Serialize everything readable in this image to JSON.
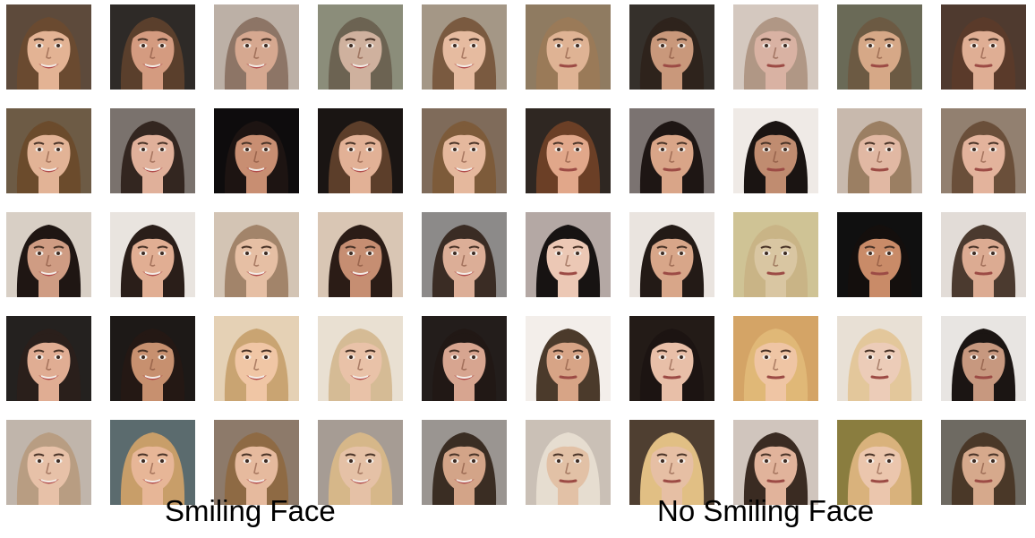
{
  "captions": {
    "left": "Smiling Face",
    "right": "No Smiling Face"
  },
  "grid": {
    "rows": 5,
    "cols_per_group": 5
  },
  "groups": [
    {
      "id": "smiling",
      "faces": [
        {
          "bg": "#5d4a3b",
          "skin": "#e3b394",
          "hair": "#6a4a30",
          "smile": true
        },
        {
          "bg": "#2e2a27",
          "skin": "#d49b80",
          "hair": "#5a3f2c",
          "smile": true
        },
        {
          "bg": "#bcb0a6",
          "skin": "#d6a890",
          "hair": "#8d7566",
          "smile": true
        },
        {
          "bg": "#8b8d7a",
          "skin": "#cfb19e",
          "hair": "#6c6352",
          "smile": true
        },
        {
          "bg": "#a49786",
          "skin": "#e6bba0",
          "hair": "#7a5a40",
          "smile": true
        },
        {
          "bg": "#6d5b45",
          "skin": "#e2b396",
          "hair": "#6b4b2c",
          "smile": true
        },
        {
          "bg": "#7a726d",
          "skin": "#e0b09a",
          "hair": "#332620",
          "smile": true
        },
        {
          "bg": "#0e0c0d",
          "skin": "#c88e72",
          "hair": "#1d1412",
          "smile": true
        },
        {
          "bg": "#1a1513",
          "skin": "#e2b196",
          "hair": "#5c3e2a",
          "smile": true
        },
        {
          "bg": "#7f6b5a",
          "skin": "#e5b89d",
          "hair": "#7d5b3a",
          "smile": true
        },
        {
          "bg": "#d8cfc5",
          "skin": "#cf9c83",
          "hair": "#1f1613",
          "smile": true
        },
        {
          "bg": "#e9e4df",
          "skin": "#e1ae93",
          "hair": "#2a1e19",
          "smile": true
        },
        {
          "bg": "#d3c4b4",
          "skin": "#e6bfa4",
          "hair": "#a2846a",
          "smile": true
        },
        {
          "bg": "#d9c6b4",
          "skin": "#c68e72",
          "hair": "#2b1c16",
          "smile": true
        },
        {
          "bg": "#8c8a89",
          "skin": "#dcae97",
          "hair": "#3a2c24",
          "smile": true
        },
        {
          "bg": "#24211f",
          "skin": "#e0ad93",
          "hair": "#2a1f1b",
          "smile": true
        },
        {
          "bg": "#1d1917",
          "skin": "#c7906f",
          "hair": "#241814",
          "smile": true
        },
        {
          "bg": "#e5d1b5",
          "skin": "#f0c6a5",
          "hair": "#c9a472",
          "smile": true
        },
        {
          "bg": "#e9e0d2",
          "skin": "#e9c2a8",
          "hair": "#d5bb95",
          "smile": true
        },
        {
          "bg": "#231d1b",
          "skin": "#d7a590",
          "hair": "#211815",
          "smile": true
        },
        {
          "bg": "#c0b5ab",
          "skin": "#e7c1a8",
          "hair": "#b89d82",
          "smile": true
        },
        {
          "bg": "#5b6b6e",
          "skin": "#e7b697",
          "hair": "#c89e69",
          "smile": true
        },
        {
          "bg": "#8d7a6a",
          "skin": "#e6ba9e",
          "hair": "#8e6a44",
          "smile": true
        },
        {
          "bg": "#a69c94",
          "skin": "#e5c1a6",
          "hair": "#d6b789",
          "smile": true
        },
        {
          "bg": "#9a9591",
          "skin": "#d3a488",
          "hair": "#3a2d23",
          "smile": true
        }
      ]
    },
    {
      "id": "not-smiling",
      "faces": [
        {
          "bg": "#8f7b61",
          "skin": "#dfb394",
          "hair": "#9a7a58",
          "smile": false
        },
        {
          "bg": "#35302b",
          "skin": "#c9987b",
          "hair": "#2e231c",
          "smile": false
        },
        {
          "bg": "#d4c8bf",
          "skin": "#d9b2a3",
          "hair": "#b09785",
          "smile": false
        },
        {
          "bg": "#6a6a57",
          "skin": "#d6a887",
          "hair": "#6c5a43",
          "smile": false
        },
        {
          "bg": "#4f3a2f",
          "skin": "#dfae94",
          "hair": "#5a3a2a",
          "smile": false
        },
        {
          "bg": "#2f2722",
          "skin": "#e1a78a",
          "hair": "#6b3f26",
          "smile": false
        },
        {
          "bg": "#7b7371",
          "skin": "#d9a588",
          "hair": "#1e1614",
          "smile": false
        },
        {
          "bg": "#efeae6",
          "skin": "#c08c70",
          "hair": "#1a1412",
          "smile": false
        },
        {
          "bg": "#c8b9ad",
          "skin": "#e1b8a3",
          "hair": "#9b7f63",
          "smile": false
        },
        {
          "bg": "#928070",
          "skin": "#e3b39c",
          "hair": "#6a4f3a",
          "smile": false
        },
        {
          "bg": "#b4a8a4",
          "skin": "#ecc8b5",
          "hair": "#171312",
          "smile": false
        },
        {
          "bg": "#eae4df",
          "skin": "#d8a689",
          "hair": "#231a16",
          "smile": false
        },
        {
          "bg": "#cfc395",
          "skin": "#d9c6a2",
          "hair": "#c9b486",
          "smile": false
        },
        {
          "bg": "#101010",
          "skin": "#c98b68",
          "hair": "#140f0d",
          "smile": false
        },
        {
          "bg": "#e2dcd7",
          "skin": "#dcab92",
          "hair": "#4b3a2f",
          "smile": false
        },
        {
          "bg": "#f3eeea",
          "skin": "#d7a486",
          "hair": "#4b3a2b",
          "smile": false
        },
        {
          "bg": "#231b17",
          "skin": "#e8bfa8",
          "hair": "#1c1412",
          "smile": false
        },
        {
          "bg": "#d4a466",
          "skin": "#efc5a4",
          "hair": "#e0b877",
          "smile": false
        },
        {
          "bg": "#e8e0d5",
          "skin": "#ecccb8",
          "hair": "#e3c79b",
          "smile": false
        },
        {
          "bg": "#e8e5e2",
          "skin": "#c7987f",
          "hair": "#1b1513",
          "smile": false
        },
        {
          "bg": "#cac0b6",
          "skin": "#e2c1a6",
          "hair": "#e6ddd0",
          "smile": false
        },
        {
          "bg": "#4f3f31",
          "skin": "#e6bfa4",
          "hair": "#e1bf84",
          "smile": false
        },
        {
          "bg": "#d0c5bd",
          "skin": "#e1b39b",
          "hair": "#3a2b22",
          "smile": false
        },
        {
          "bg": "#8a7d3f",
          "skin": "#ebc6ad",
          "hair": "#d9b27c",
          "smile": false
        },
        {
          "bg": "#6e6a62",
          "skin": "#d6a98c",
          "hair": "#4a3828",
          "smile": false
        }
      ]
    }
  ]
}
